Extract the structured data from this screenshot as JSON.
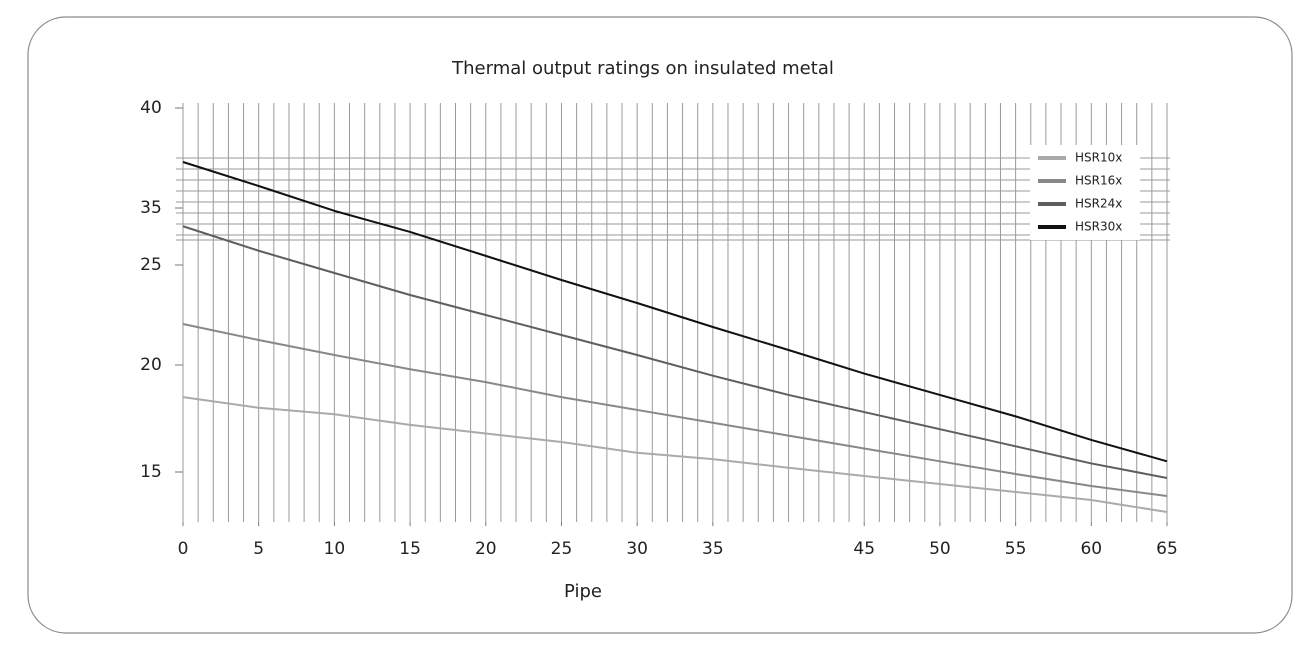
{
  "chart_data": {
    "type": "line",
    "title": "Thermal output ratings on insulated metal",
    "x_label": "Pipe",
    "x": [
      0,
      5,
      10,
      15,
      20,
      25,
      30,
      35,
      40,
      45,
      50,
      55,
      60,
      65
    ],
    "series": [
      {
        "name": "HSR10x",
        "color": "#aaaaaa",
        "values": [
          18.5,
          18.0,
          17.7,
          17.2,
          16.8,
          16.4,
          15.9,
          15.6,
          15.2,
          14.8,
          14.4,
          14.0,
          13.6,
          13.0
        ]
      },
      {
        "name": "HSR16x",
        "color": "#888888",
        "values": [
          22.05,
          21.25,
          20.5,
          19.8,
          19.2,
          18.5,
          17.9,
          17.3,
          16.7,
          16.1,
          15.5,
          14.9,
          14.3,
          13.8
        ]
      },
      {
        "name": "HSR24x",
        "color": "#5e5e5e",
        "values": [
          31.8,
          27.5,
          24.6,
          23.5,
          22.5,
          21.5,
          20.5,
          19.5,
          18.6,
          17.8,
          17.0,
          16.2,
          15.4,
          14.7
        ]
      },
      {
        "name": "HSR30x",
        "color": "#111111",
        "values": [
          37.3,
          36.1,
          34.5,
          30.8,
          26.6,
          24.25,
          23.1,
          21.9,
          20.75,
          19.6,
          18.6,
          17.6,
          16.5,
          15.5
        ]
      }
    ],
    "xlim": [
      0,
      65
    ],
    "xticks": [
      0,
      5,
      10,
      15,
      20,
      25,
      30,
      35,
      45,
      50,
      55,
      60,
      65
    ],
    "ylim": [
      12.5,
      40
    ],
    "yticks": [
      15,
      20,
      25,
      35,
      40
    ],
    "legend": "upper right"
  }
}
